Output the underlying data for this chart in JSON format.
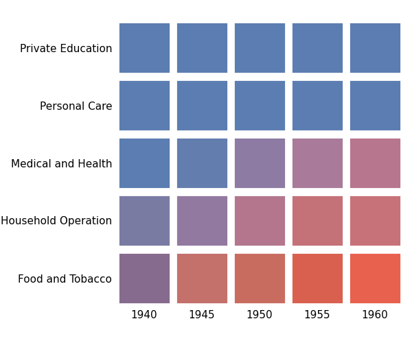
{
  "x_labels": [
    "1940",
    "1945",
    "1950",
    "1955",
    "1960"
  ],
  "y_labels": [
    "Food and Tobacco",
    "Household Operation",
    "Medical and Health",
    "Personal Care",
    "Private Education"
  ],
  "values": [
    [
      1,
      2,
      3,
      4,
      5
    ],
    [
      2,
      3,
      4,
      5,
      5
    ],
    [
      1,
      2,
      3,
      5,
      5
    ],
    [
      1,
      1,
      1,
      1,
      1
    ],
    [
      1,
      1,
      1,
      1,
      1
    ]
  ],
  "color_low": "#5b7db1",
  "color_high": "#e8614f",
  "border_color": "white",
  "border_width": 2,
  "cell_colors": [
    [
      "#876b8e",
      "#c4706b",
      "#c96c60",
      "#d9604f",
      "#e8614f"
    ],
    [
      "#7a7ba3",
      "#9279a0",
      "#b3768d",
      "#c47178",
      "#c77278"
    ],
    [
      "#5b7db1",
      "#637dae",
      "#8d7ba3",
      "#a97a99",
      "#b8758e"
    ],
    [
      "#5b7db1",
      "#5b7db1",
      "#5b7db1",
      "#5b7db1",
      "#5b7db1"
    ],
    [
      "#5b7db1",
      "#5b7db1",
      "#5b7db1",
      "#5b7db1",
      "#5b7db1"
    ]
  ],
  "figsize": [
    6.0,
    5.0
  ],
  "dpi": 100
}
